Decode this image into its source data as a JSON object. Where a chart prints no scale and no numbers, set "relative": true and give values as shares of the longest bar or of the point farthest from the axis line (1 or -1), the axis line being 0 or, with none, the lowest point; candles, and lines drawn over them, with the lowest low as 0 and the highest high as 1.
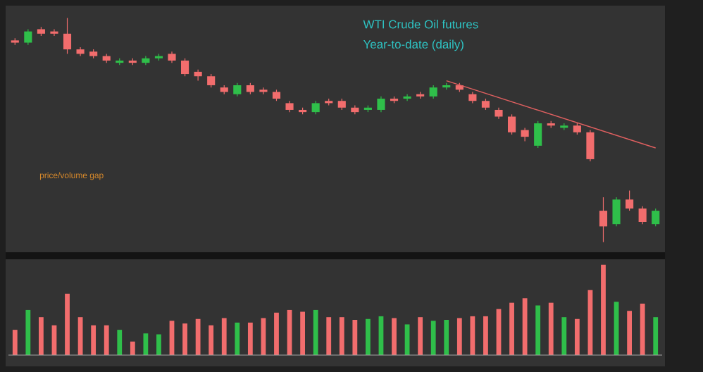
{
  "chart_data": [
    {
      "type": "candlestick",
      "title": "WTI Crude Oil futures",
      "subtitle": "Year-to-date (daily)",
      "annotations": [
        "price/volume gap"
      ],
      "relative": true,
      "categories": [
        null,
        null,
        null,
        null,
        null,
        null,
        null,
        null,
        null,
        null,
        null,
        null,
        null,
        null,
        null,
        null,
        null,
        null,
        null,
        null,
        null,
        null,
        null,
        null,
        null,
        null,
        null,
        null,
        null,
        null,
        null,
        null,
        null,
        null,
        null,
        null,
        null,
        null,
        null,
        null,
        null,
        null,
        null,
        null,
        null,
        null,
        null,
        null,
        null,
        null
      ],
      "ohlc": [
        [
          0.9,
          0.91,
          0.88,
          0.89
        ],
        [
          0.89,
          0.95,
          0.88,
          0.94
        ],
        [
          0.95,
          0.96,
          0.92,
          0.93
        ],
        [
          0.94,
          0.95,
          0.92,
          0.93
        ],
        [
          0.93,
          1.0,
          0.84,
          0.86
        ],
        [
          0.86,
          0.87,
          0.83,
          0.84
        ],
        [
          0.85,
          0.86,
          0.82,
          0.83
        ],
        [
          0.83,
          0.84,
          0.8,
          0.81
        ],
        [
          0.8,
          0.82,
          0.79,
          0.81
        ],
        [
          0.81,
          0.82,
          0.79,
          0.8
        ],
        [
          0.8,
          0.83,
          0.79,
          0.82
        ],
        [
          0.82,
          0.84,
          0.81,
          0.83
        ],
        [
          0.84,
          0.85,
          0.8,
          0.81
        ],
        [
          0.81,
          0.82,
          0.74,
          0.75
        ],
        [
          0.76,
          0.77,
          0.72,
          0.74
        ],
        [
          0.74,
          0.75,
          0.69,
          0.7
        ],
        [
          0.69,
          0.7,
          0.66,
          0.67
        ],
        [
          0.66,
          0.71,
          0.65,
          0.7
        ],
        [
          0.7,
          0.71,
          0.66,
          0.67
        ],
        [
          0.68,
          0.69,
          0.66,
          0.67
        ],
        [
          0.67,
          0.68,
          0.63,
          0.64
        ],
        [
          0.62,
          0.63,
          0.58,
          0.59
        ],
        [
          0.59,
          0.6,
          0.57,
          0.58
        ],
        [
          0.58,
          0.63,
          0.57,
          0.62
        ],
        [
          0.63,
          0.64,
          0.61,
          0.62
        ],
        [
          0.63,
          0.64,
          0.59,
          0.6
        ],
        [
          0.6,
          0.61,
          0.57,
          0.58
        ],
        [
          0.59,
          0.61,
          0.58,
          0.6
        ],
        [
          0.59,
          0.65,
          0.58,
          0.64
        ],
        [
          0.64,
          0.65,
          0.62,
          0.63
        ],
        [
          0.64,
          0.66,
          0.63,
          0.65
        ],
        [
          0.66,
          0.67,
          0.64,
          0.65
        ],
        [
          0.65,
          0.7,
          0.64,
          0.69
        ],
        [
          0.69,
          0.71,
          0.68,
          0.7
        ],
        [
          0.7,
          0.71,
          0.67,
          0.68
        ],
        [
          0.66,
          0.67,
          0.62,
          0.63
        ],
        [
          0.63,
          0.64,
          0.59,
          0.6
        ],
        [
          0.59,
          0.6,
          0.55,
          0.56
        ],
        [
          0.56,
          0.57,
          0.48,
          0.49
        ],
        [
          0.5,
          0.51,
          0.45,
          0.47
        ],
        [
          0.43,
          0.54,
          0.42,
          0.53
        ],
        [
          0.53,
          0.54,
          0.51,
          0.52
        ],
        [
          0.51,
          0.53,
          0.5,
          0.52
        ],
        [
          0.52,
          0.53,
          0.48,
          0.49
        ],
        [
          0.49,
          0.5,
          0.36,
          0.37
        ],
        [
          0.14,
          0.2,
          0.0,
          0.07
        ],
        [
          0.08,
          0.2,
          0.07,
          0.19
        ],
        [
          0.19,
          0.23,
          0.14,
          0.15
        ],
        [
          0.15,
          0.16,
          0.08,
          0.09
        ],
        [
          0.08,
          0.15,
          0.07,
          0.14
        ]
      ],
      "series": [
        {
          "type": "line",
          "color": "#e06060",
          "values": [
            null,
            null,
            null,
            null,
            null,
            null,
            null,
            null,
            null,
            null,
            null,
            null,
            null,
            null,
            null,
            null,
            null,
            null,
            null,
            null,
            null,
            null,
            null,
            null,
            null,
            null,
            null,
            null,
            null,
            null,
            null,
            null,
            null,
            0.72,
            null,
            null,
            null,
            null,
            null,
            null,
            null,
            null,
            null,
            null,
            null,
            null,
            null,
            null,
            null,
            0.42
          ]
        }
      ]
    },
    {
      "type": "bar",
      "relative": true,
      "categories": [
        null,
        null,
        null,
        null,
        null,
        null,
        null,
        null,
        null,
        null,
        null,
        null,
        null,
        null,
        null,
        null,
        null,
        null,
        null,
        null,
        null,
        null,
        null,
        null,
        null,
        null,
        null,
        null,
        null,
        null,
        null,
        null,
        null,
        null,
        null,
        null,
        null,
        null,
        null,
        null,
        null,
        null,
        null,
        null,
        null,
        null,
        null,
        null,
        null,
        null
      ],
      "values": [
        0.28,
        0.5,
        0.42,
        0.33,
        0.68,
        0.42,
        0.33,
        0.33,
        0.28,
        0.15,
        0.24,
        0.23,
        0.38,
        0.35,
        0.4,
        0.33,
        0.41,
        0.36,
        0.36,
        0.41,
        0.47,
        0.5,
        0.48,
        0.5,
        0.42,
        0.42,
        0.39,
        0.4,
        0.43,
        0.41,
        0.34,
        0.42,
        0.38,
        0.39,
        0.41,
        0.43,
        0.43,
        0.51,
        0.58,
        0.63,
        0.55,
        0.58,
        0.42,
        0.4,
        0.72,
        1,
        0.59,
        0.49,
        0.57,
        0.42
      ],
      "colors": [
        "#f26d6d",
        "#2fbf4a",
        "#f26d6d",
        "#f26d6d",
        "#f26d6d",
        "#f26d6d",
        "#f26d6d",
        "#f26d6d",
        "#2fbf4a",
        "#f26d6d",
        "#2fbf4a",
        "#2fbf4a",
        "#f26d6d",
        "#f26d6d",
        "#f26d6d",
        "#f26d6d",
        "#f26d6d",
        "#2fbf4a",
        "#f26d6d",
        "#f26d6d",
        "#f26d6d",
        "#f26d6d",
        "#f26d6d",
        "#2fbf4a",
        "#f26d6d",
        "#f26d6d",
        "#f26d6d",
        "#2fbf4a",
        "#2fbf4a",
        "#f26d6d",
        "#2fbf4a",
        "#f26d6d",
        "#2fbf4a",
        "#2fbf4a",
        "#f26d6d",
        "#f26d6d",
        "#f26d6d",
        "#f26d6d",
        "#f26d6d",
        "#f26d6d",
        "#2fbf4a",
        "#f26d6d",
        "#2fbf4a",
        "#f26d6d",
        "#f26d6d",
        "#f26d6d",
        "#2fbf4a",
        "#f26d6d",
        "#f26d6d",
        "#2fbf4a"
      ]
    }
  ]
}
